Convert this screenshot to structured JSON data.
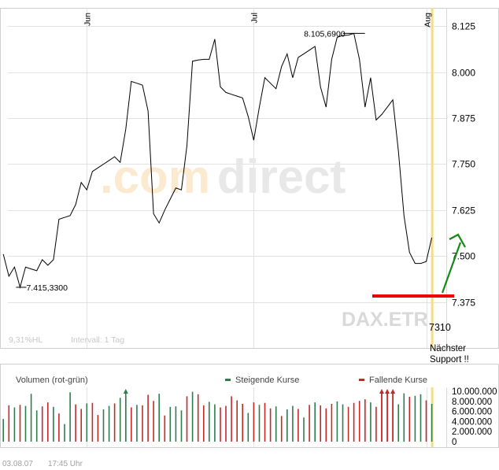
{
  "main_chart": {
    "month_labels": [
      {
        "label": "Jun",
        "day": 15
      },
      {
        "label": "Jul",
        "day": 45
      },
      {
        "label": "Aug",
        "day": 76
      }
    ],
    "y_ticks": [
      8.125,
      8.0,
      7.875,
      7.75,
      7.625,
      7.5,
      7.375
    ],
    "y_tick_labels": [
      "8.125",
      "8.000",
      "7.875",
      "7.750",
      "7.625",
      "7.500",
      "7.375"
    ],
    "ylim": [
      7.25,
      8.175
    ],
    "xlim": [
      -0.6,
      79.6
    ],
    "annotations": {
      "high_label": "8.105,6900",
      "low_label": "7.415,3300"
    },
    "watermark": {
      "com": ".com",
      "direct": "direct",
      "symbol": "DAX.ETR"
    },
    "footer_left": "9,31%HL",
    "footer_interval": "Intervall: 1 Tag",
    "support_value_label": "7310",
    "support_note_line1": "Nächster",
    "support_note_line2": "Support !!",
    "colors": {
      "line": "#000000",
      "grid": "#e2e2e2",
      "today_marker": "#f5dc8a",
      "support": "#ee0000",
      "arrow": "#138a13"
    }
  },
  "chart_data": {
    "type": "line",
    "title": "",
    "x": [
      0,
      1,
      2,
      3,
      4,
      5,
      6,
      7,
      8,
      9,
      10,
      11,
      12,
      13,
      14,
      15,
      16,
      17,
      18,
      19,
      20,
      21,
      22,
      23,
      24,
      25,
      26,
      27,
      28,
      29,
      30,
      31,
      32,
      33,
      34,
      35,
      36,
      37,
      38,
      39,
      40,
      41,
      42,
      43,
      44,
      45,
      46,
      47,
      48,
      49,
      50,
      51,
      52,
      53,
      54,
      55,
      56,
      57,
      58,
      59,
      60,
      61,
      62,
      63,
      64,
      65,
      66,
      67,
      68,
      69,
      70,
      71,
      72,
      73,
      74,
      75,
      76,
      77
    ],
    "y": [
      7.505,
      7.445,
      7.47,
      7.415,
      7.47,
      7.465,
      7.46,
      7.49,
      7.475,
      7.49,
      7.6,
      7.605,
      7.61,
      7.64,
      7.7,
      7.68,
      7.73,
      7.74,
      7.75,
      7.76,
      7.77,
      7.755,
      7.845,
      7.975,
      7.97,
      7.965,
      7.895,
      7.615,
      7.59,
      7.625,
      7.655,
      7.685,
      7.68,
      7.8,
      8.03,
      8.033,
      8.035,
      8.035,
      8.09,
      7.96,
      7.945,
      7.94,
      7.935,
      7.93,
      7.88,
      7.815,
      7.905,
      7.985,
      7.97,
      7.955,
      8.015,
      8.05,
      7.985,
      8.04,
      8.05,
      8.06,
      8.07,
      7.96,
      7.905,
      8.035,
      8.095,
      8.1,
      8.101,
      8.1057,
      8.035,
      7.905,
      7.985,
      7.87,
      7.885,
      7.905,
      7.925,
      7.785,
      7.61,
      7.51,
      7.48,
      7.48,
      7.485,
      7.55
    ],
    "xlabel": "",
    "ylabel": "",
    "ylim": [
      7.25,
      8.175
    ],
    "grid": true,
    "support_level": 7.31,
    "volume": {
      "title": "Volumen (rot-grün)",
      "legend": [
        "Steigende Kurse",
        "Fallende Kurse"
      ],
      "ytick_labels": [
        "10.000.000",
        "8.000.000",
        "6.000.000",
        "4.000.000",
        "2.000.000",
        "0"
      ],
      "ylim": [
        0,
        10000000
      ]
    }
  },
  "volume_chart": {
    "title": "Volumen (rot-grün)",
    "legend_up": "Steigende Kurse",
    "legend_down": "Fallende Kurse",
    "up_color": "#2e7d4e",
    "down_color": "#c62828",
    "ytick_values": [
      10000000,
      8000000,
      6000000,
      4000000,
      2000000,
      0
    ],
    "ytick_labels": [
      "10.000.000",
      "8.000.000",
      "6.000.000",
      "4.000.000",
      "2.000.000",
      "0"
    ],
    "ylim": [
      0,
      10000000
    ],
    "bars": [
      {
        "v": 4500000,
        "d": "up"
      },
      {
        "v": 7200000,
        "d": "down"
      },
      {
        "v": 6800000,
        "d": "up"
      },
      {
        "v": 7300000,
        "d": "down"
      },
      {
        "v": 7100000,
        "d": "up"
      },
      {
        "v": 9500000,
        "d": "up"
      },
      {
        "v": 6200000,
        "d": "up"
      },
      {
        "v": 7000000,
        "d": "down"
      },
      {
        "v": 7800000,
        "d": "down"
      },
      {
        "v": 6900000,
        "d": "up"
      },
      {
        "v": 5600000,
        "d": "down"
      },
      {
        "v": 3500000,
        "d": "up"
      },
      {
        "v": 9800000,
        "d": "up"
      },
      {
        "v": 7400000,
        "d": "down"
      },
      {
        "v": 6500000,
        "d": "down"
      },
      {
        "v": 7600000,
        "d": "up"
      },
      {
        "v": 7700000,
        "d": "down"
      },
      {
        "v": 5300000,
        "d": "down"
      },
      {
        "v": 6400000,
        "d": "up"
      },
      {
        "v": 7100000,
        "d": "up"
      },
      {
        "v": 7600000,
        "d": "down"
      },
      {
        "v": 8700000,
        "d": "up"
      },
      {
        "v": 9100000,
        "d": "up"
      },
      {
        "v": 6800000,
        "d": "down"
      },
      {
        "v": 7300000,
        "d": "up"
      },
      {
        "v": 7200000,
        "d": "down"
      },
      {
        "v": 9300000,
        "d": "down"
      },
      {
        "v": 8100000,
        "d": "down"
      },
      {
        "v": 9500000,
        "d": "up"
      },
      {
        "v": 5200000,
        "d": "down"
      },
      {
        "v": 6900000,
        "d": "up"
      },
      {
        "v": 7000000,
        "d": "up"
      },
      {
        "v": 6200000,
        "d": "up"
      },
      {
        "v": 9000000,
        "d": "down"
      },
      {
        "v": 9900000,
        "d": "up"
      },
      {
        "v": 9400000,
        "d": "down"
      },
      {
        "v": 7200000,
        "d": "down"
      },
      {
        "v": 7900000,
        "d": "up"
      },
      {
        "v": 7400000,
        "d": "up"
      },
      {
        "v": 6800000,
        "d": "down"
      },
      {
        "v": 7100000,
        "d": "down"
      },
      {
        "v": 9000000,
        "d": "down"
      },
      {
        "v": 8200000,
        "d": "down"
      },
      {
        "v": 7500000,
        "d": "down"
      },
      {
        "v": 5700000,
        "d": "up"
      },
      {
        "v": 7800000,
        "d": "down"
      },
      {
        "v": 7300000,
        "d": "up"
      },
      {
        "v": 7700000,
        "d": "down"
      },
      {
        "v": 6600000,
        "d": "down"
      },
      {
        "v": 7000000,
        "d": "up"
      },
      {
        "v": 5100000,
        "d": "down"
      },
      {
        "v": 6400000,
        "d": "up"
      },
      {
        "v": 7100000,
        "d": "up"
      },
      {
        "v": 6500000,
        "d": "down"
      },
      {
        "v": 4800000,
        "d": "up"
      },
      {
        "v": 7300000,
        "d": "down"
      },
      {
        "v": 7800000,
        "d": "up"
      },
      {
        "v": 7200000,
        "d": "down"
      },
      {
        "v": 6600000,
        "d": "down"
      },
      {
        "v": 7500000,
        "d": "down"
      },
      {
        "v": 8000000,
        "d": "up"
      },
      {
        "v": 7400000,
        "d": "up"
      },
      {
        "v": 6900000,
        "d": "down"
      },
      {
        "v": 7700000,
        "d": "down"
      },
      {
        "v": 8100000,
        "d": "down"
      },
      {
        "v": 8400000,
        "d": "down"
      },
      {
        "v": 7800000,
        "d": "up"
      },
      {
        "v": 6900000,
        "d": "down"
      },
      {
        "v": 9700000,
        "d": "down"
      },
      {
        "v": 9900000,
        "d": "down"
      },
      {
        "v": 9600000,
        "d": "down"
      },
      {
        "v": 7400000,
        "d": "up"
      },
      {
        "v": 9600000,
        "d": "up"
      },
      {
        "v": 8900000,
        "d": "down"
      },
      {
        "v": 9100000,
        "d": "up"
      },
      {
        "v": 9400000,
        "d": "up"
      },
      {
        "v": 8200000,
        "d": "down"
      },
      {
        "v": 7500000,
        "d": "up"
      }
    ],
    "arrows_up": [
      22
    ],
    "arrows_down": [
      68,
      69,
      70
    ]
  },
  "footer": {
    "date": "03.08.07",
    "time": "17:45 Uhr"
  }
}
